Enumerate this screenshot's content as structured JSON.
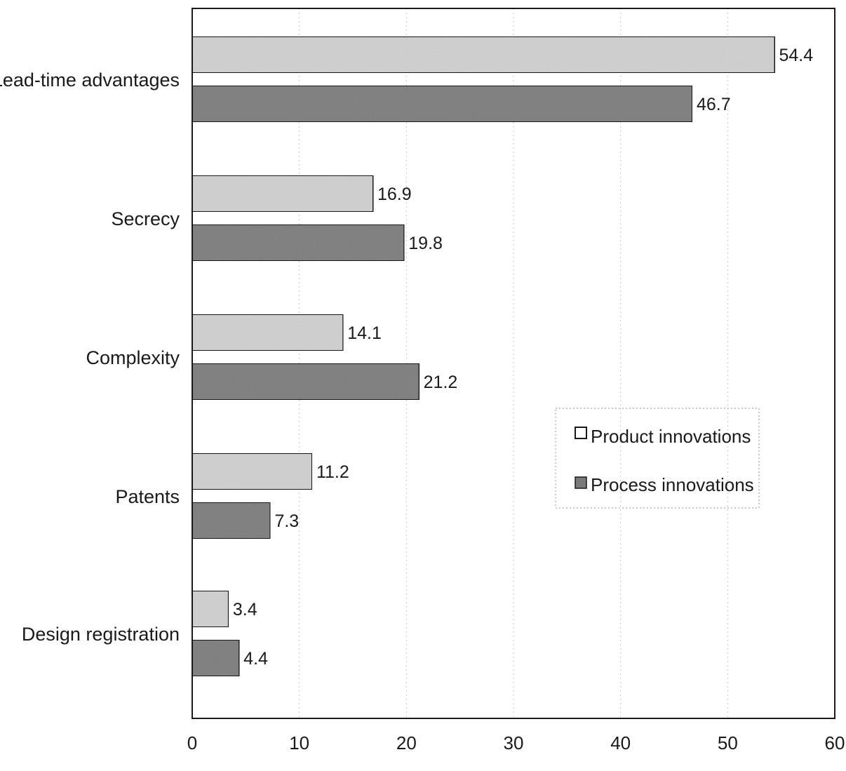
{
  "chart_data": {
    "type": "bar",
    "orientation": "horizontal",
    "categories": [
      "Lead-time advantages",
      "Secrecy",
      "Complexity",
      "Patents",
      "Design registration"
    ],
    "series": [
      {
        "name": "Product innovations",
        "values": [
          54.4,
          16.9,
          14.1,
          11.2,
          3.4
        ],
        "color": "#d6d6d6"
      },
      {
        "name": "Process innovations",
        "values": [
          46.7,
          19.8,
          21.2,
          7.3,
          4.4
        ],
        "color": "#8a8a8a"
      }
    ],
    "xlim": [
      0,
      60
    ],
    "x_ticks": [
      "0",
      "10",
      "20",
      "30",
      "40",
      "50",
      "60"
    ],
    "data_labels": [
      [
        "54.4",
        "16.9",
        "14.1",
        "11.2",
        "3.4"
      ],
      [
        "46.7",
        "19.8",
        "21.2",
        "7.3",
        "4.4"
      ]
    ],
    "title": "",
    "xlabel": "",
    "ylabel": "",
    "grid": "vertical dotted",
    "legend_position": "middle-right"
  }
}
